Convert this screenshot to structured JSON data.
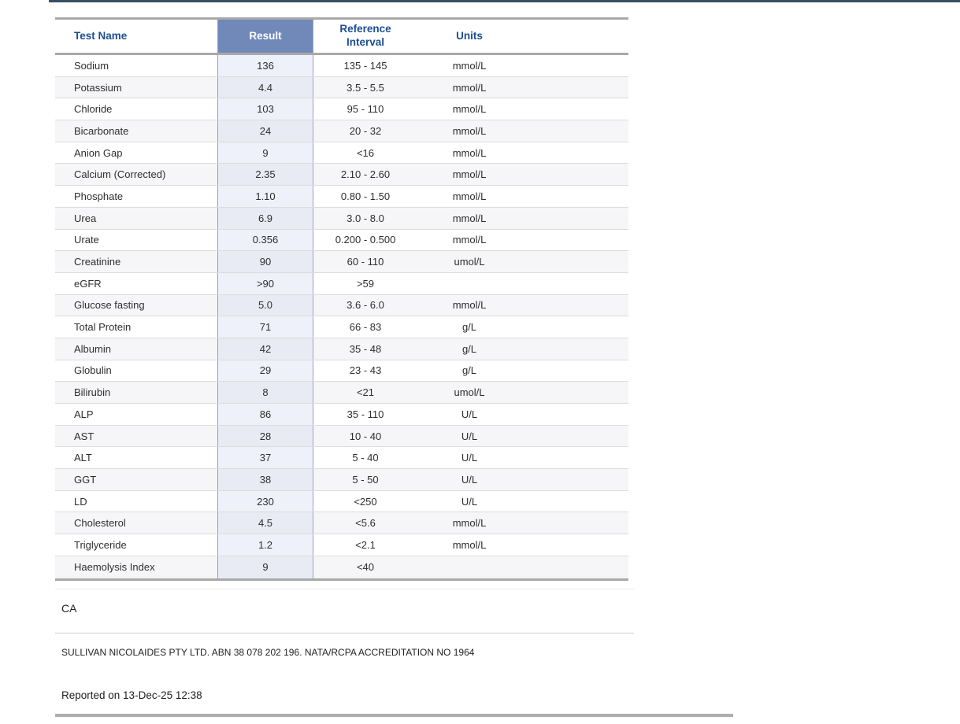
{
  "table": {
    "headers": {
      "test_name": "Test Name",
      "result": "Result",
      "reference_interval": "Reference Interval",
      "units": "Units"
    },
    "rows": [
      {
        "test_name": "Sodium",
        "result": "136",
        "reference_interval": "135 - 145",
        "units": "mmol/L"
      },
      {
        "test_name": "Potassium",
        "result": "4.4",
        "reference_interval": "3.5 - 5.5",
        "units": "mmol/L"
      },
      {
        "test_name": "Chloride",
        "result": "103",
        "reference_interval": "95 - 110",
        "units": "mmol/L"
      },
      {
        "test_name": "Bicarbonate",
        "result": "24",
        "reference_interval": "20 - 32",
        "units": "mmol/L"
      },
      {
        "test_name": "Anion Gap",
        "result": "9",
        "reference_interval": "<16",
        "units": "mmol/L"
      },
      {
        "test_name": "Calcium (Corrected)",
        "result": "2.35",
        "reference_interval": "2.10 - 2.60",
        "units": "mmol/L"
      },
      {
        "test_name": "Phosphate",
        "result": "1.10",
        "reference_interval": "0.80 - 1.50",
        "units": "mmol/L"
      },
      {
        "test_name": "Urea",
        "result": "6.9",
        "reference_interval": "3.0 - 8.0",
        "units": "mmol/L"
      },
      {
        "test_name": "Urate",
        "result": "0.356",
        "reference_interval": "0.200 - 0.500",
        "units": "mmol/L"
      },
      {
        "test_name": "Creatinine",
        "result": "90",
        "reference_interval": "60 - 110",
        "units": "umol/L"
      },
      {
        "test_name": "eGFR",
        "result": ">90",
        "reference_interval": ">59",
        "units": ""
      },
      {
        "test_name": "Glucose fasting",
        "result": "5.0",
        "reference_interval": "3.6 - 6.0",
        "units": "mmol/L"
      },
      {
        "test_name": "Total Protein",
        "result": "71",
        "reference_interval": "66 - 83",
        "units": "g/L"
      },
      {
        "test_name": "Albumin",
        "result": "42",
        "reference_interval": "35 - 48",
        "units": "g/L"
      },
      {
        "test_name": "Globulin",
        "result": "29",
        "reference_interval": "23 - 43",
        "units": "g/L"
      },
      {
        "test_name": "Bilirubin",
        "result": "8",
        "reference_interval": "<21",
        "units": "umol/L"
      },
      {
        "test_name": "ALP",
        "result": "86",
        "reference_interval": "35 - 110",
        "units": "U/L"
      },
      {
        "test_name": "AST",
        "result": "28",
        "reference_interval": "10 - 40",
        "units": "U/L"
      },
      {
        "test_name": "ALT",
        "result": "37",
        "reference_interval": "5 - 40",
        "units": "U/L"
      },
      {
        "test_name": "GGT",
        "result": "38",
        "reference_interval": "5 - 50",
        "units": "U/L"
      },
      {
        "test_name": "LD",
        "result": "230",
        "reference_interval": "<250",
        "units": "U/L"
      },
      {
        "test_name": "Cholesterol",
        "result": "4.5",
        "reference_interval": "<5.6",
        "units": "mmol/L"
      },
      {
        "test_name": "Triglyceride",
        "result": "1.2",
        "reference_interval": "<2.1",
        "units": "mmol/L"
      },
      {
        "test_name": "Haemolysis Index",
        "result": "9",
        "reference_interval": "<40",
        "units": ""
      }
    ]
  },
  "footer": {
    "note": "CA",
    "lab_info": "SULLIVAN NICOLAIDES PTY LTD. ABN 38 078 202 196. NATA/RCPA ACCREDITATION NO 1964",
    "reported_on": "Reported on 13-Dec-25 12:38"
  },
  "colors": {
    "header_text_blue": "#1d4e91",
    "result_header_bg": "#7189b8",
    "result_header_text": "#ffffff",
    "result_column_bg": "#eef1fa",
    "alt_row_bg": "#f6f6f8",
    "thick_border": "#a9a9a9",
    "top_rule": "#3b4d66"
  }
}
